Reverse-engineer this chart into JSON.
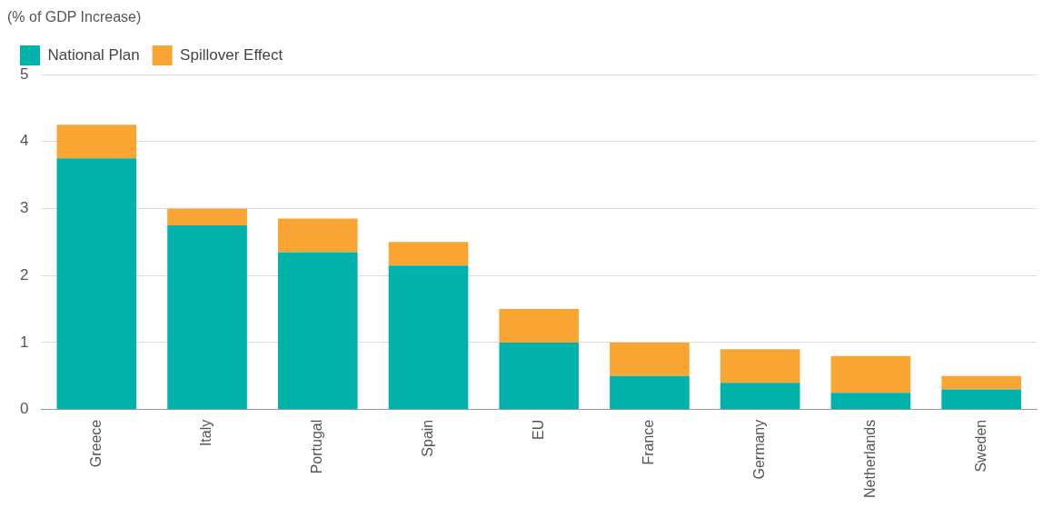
{
  "chart_data": {
    "type": "bar",
    "ylabel": "(% of GDP Increase)",
    "stacked": true,
    "categories": [
      "Greece",
      "Italy",
      "Portugal",
      "Spain",
      "EU",
      "France",
      "Germany",
      "Netherlands",
      "Sweden"
    ],
    "series": [
      {
        "name": "National Plan",
        "color": "#00b2a9",
        "values": [
          3.75,
          2.75,
          2.35,
          2.15,
          1.0,
          0.5,
          0.4,
          0.25,
          0.3
        ]
      },
      {
        "name": "Spillover Effect",
        "color": "#f9a533",
        "values": [
          0.5,
          0.25,
          0.5,
          0.35,
          0.5,
          0.5,
          0.5,
          0.55,
          0.2
        ]
      }
    ],
    "ylim": [
      0,
      5
    ],
    "yticks": [
      0,
      1,
      2,
      3,
      4,
      5
    ],
    "grid": "y",
    "legend": "top left"
  }
}
